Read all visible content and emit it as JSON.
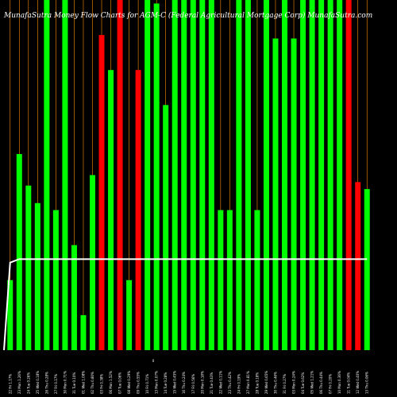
{
  "chart_data": {
    "type": "bar",
    "title": "MunafaSutra  Money Flow  Charts for AGM-C          (Federal Agricultural Mortgage Corp)  MunafaSutra.com",
    "xlabel": "",
    "ylabel": "",
    "ylim": [
      0,
      1
    ],
    "colors": {
      "positive": "#00ff00",
      "negative": "#ff0000",
      "background": "#000000",
      "line": "#ffffff",
      "grid": "#ff8c00"
    },
    "categories": [
      "22 Fri 1.17%",
      "23 Mon 1.26%",
      "24 Tue 0.26%",
      "25 Wed 0.18%",
      "26 Thu 0.28%",
      "27 Fri 0.17%",
      "30 Mon 0.71%",
      "31 Tue 0.10%",
      "01 Wed 1.08%",
      "02 Thu 0.80%",
      "03 Fri 0.38%",
      "06 Mon 1.52%",
      "07 Tue 0.06%",
      "08 Wed 0.29%",
      "09 Thu 0.55%",
      "10 Fri 0.71%",
      "13 Mon 0.07%",
      "14 Tue 0.28%",
      "15 Wed 0.45%",
      "16 Thu 0.24%",
      "17 Fri 0.56%",
      "20 Mon 0.18%",
      "21 Tue 0.43%",
      "22 Wed 0.11%",
      "23 Thu 0.42%",
      "24 Fri 0.19%",
      "27 Mon 0.81%",
      "28 Tue 0.18%",
      "29 Wed 0.65%",
      "30 Thu 0.46%",
      "31 Fri 0.27%",
      "03 Mon 0.24%",
      "04 Tue 0.62%",
      "05 Wed 1.21%",
      "06 Thu 0.44%",
      "07 Fri 0.20%",
      "10 Mon 0.36%",
      "11 Tue 0.04%",
      "12 Wed 0.40%",
      "13 Thu 0.06%"
    ],
    "values": [
      0.2,
      0.56,
      0.47,
      0.42,
      1.0,
      0.4,
      1.0,
      0.3,
      0.1,
      0.5,
      0.9,
      0.8,
      1.0,
      0.2,
      0.8,
      1.0,
      0.99,
      0.7,
      1.0,
      1.0,
      1.0,
      1.0,
      1.0,
      0.4,
      0.4,
      1.0,
      1.0,
      0.4,
      1.0,
      0.89,
      1.0,
      0.89,
      1.0,
      1.0,
      1.0,
      1.0,
      1.0,
      1.0,
      0.48,
      0.46
    ],
    "direction": [
      "up",
      "up",
      "up",
      "up",
      "up",
      "up",
      "up",
      "up",
      "up",
      "up",
      "down",
      "up",
      "down",
      "up",
      "down",
      "up",
      "up",
      "up",
      "up",
      "up",
      "up",
      "up",
      "up",
      "up",
      "up",
      "up",
      "up",
      "up",
      "up",
      "up",
      "up",
      "up",
      "up",
      "up",
      "up",
      "up",
      "up",
      "down",
      "down",
      "up"
    ],
    "line_values": [
      0.25,
      0.26,
      0.26,
      0.26,
      0.26,
      0.26,
      0.26,
      0.26,
      0.26,
      0.26,
      0.26,
      0.26,
      0.26,
      0.26,
      0.26,
      0.26,
      0.26,
      0.26,
      0.26,
      0.26,
      0.26,
      0.26,
      0.26,
      0.26,
      0.26,
      0.26,
      0.26,
      0.26,
      0.26,
      0.26,
      0.26,
      0.26,
      0.26,
      0.26,
      0.26,
      0.26,
      0.26,
      0.26,
      0.26,
      0.26
    ],
    "line_start": 0.0,
    "zero_label": "0",
    "grid": true
  }
}
